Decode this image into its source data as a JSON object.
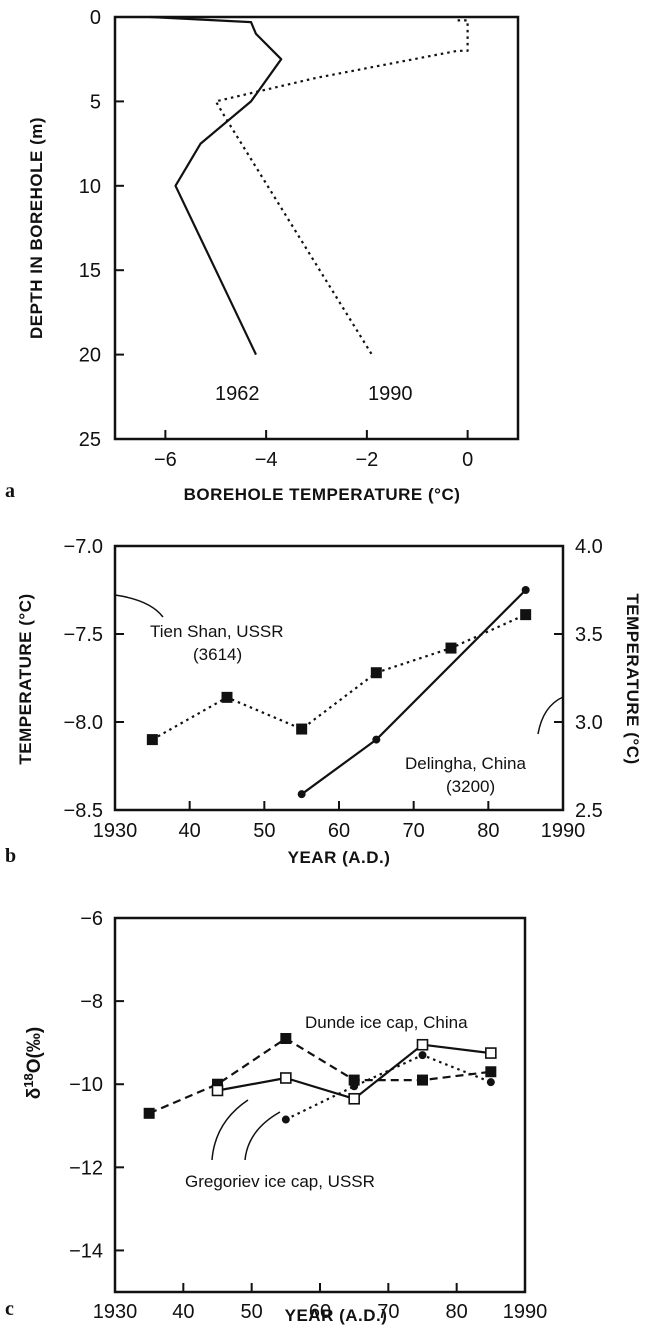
{
  "chart_data": [
    {
      "type": "line",
      "panel_label": "a",
      "xlabel": "BOREHOLE TEMPERATURE (°C)",
      "ylabel": "DEPTH IN BOREHOLE (m)",
      "xlim": [
        -7,
        1
      ],
      "ylim": [
        25,
        0
      ],
      "xticks": [
        -6,
        -4,
        -2,
        0
      ],
      "yticks": [
        0,
        5,
        10,
        15,
        20,
        25
      ],
      "series": [
        {
          "name": "1962",
          "style": "solid",
          "points": [
            [
              -6.3,
              0
            ],
            [
              -4.3,
              0.3
            ],
            [
              -4.2,
              1.0
            ],
            [
              -3.7,
              2.5
            ],
            [
              -4.3,
              5.0
            ],
            [
              -5.3,
              7.5
            ],
            [
              -5.8,
              10.0
            ],
            [
              -5.0,
              15.0
            ],
            [
              -4.2,
              20.0
            ]
          ]
        },
        {
          "name": "1990",
          "style": "dotted",
          "points": [
            [
              -0.2,
              0.2
            ],
            [
              0.0,
              0.2
            ],
            [
              0.0,
              2.0
            ],
            [
              -0.2,
              2.0
            ],
            [
              -3.0,
              3.6
            ],
            [
              -5.0,
              5.0
            ],
            [
              -4.8,
              6.0
            ],
            [
              -1.9,
              20.0
            ]
          ]
        }
      ],
      "grid": false
    },
    {
      "type": "line",
      "panel_label": "b",
      "xlabel": "YEAR (A.D.)",
      "ylabel_left": "TEMPERATURE (°C)",
      "ylabel_right": "TEMPERATURE (°C)",
      "xlim": [
        1930,
        1990
      ],
      "xticks": [
        1930,
        1940,
        1950,
        1960,
        1970,
        1980,
        1990
      ],
      "xtick_labels": [
        "1930",
        "40",
        "50",
        "60",
        "70",
        "80",
        "1990"
      ],
      "ylim_left": [
        -8.5,
        -7.0
      ],
      "yticks_left": [
        "-7.0",
        "-7.5",
        "-8.0",
        "-8.5"
      ],
      "ylim_right": [
        2.5,
        4.0
      ],
      "yticks_right": [
        "4.0",
        "3.5",
        "3.0",
        "2.5"
      ],
      "series": [
        {
          "name": "Tien Shan, USSR",
          "name_sub": "(3614)",
          "axis": "left",
          "style": "dotted",
          "marker": "square",
          "x": [
            1935,
            1945,
            1955,
            1965,
            1975,
            1985
          ],
          "values": [
            -8.1,
            -7.86,
            -8.04,
            -7.72,
            -7.58,
            -7.39
          ]
        },
        {
          "name": "Delingha, China",
          "name_sub": "(3200)",
          "axis": "right",
          "style": "solid",
          "marker": "dot",
          "x": [
            1955,
            1965,
            1985
          ],
          "values": [
            2.59,
            2.9,
            3.75
          ]
        }
      ],
      "grid": false
    },
    {
      "type": "line",
      "panel_label": "c",
      "xlabel": "YEAR (A.D.)",
      "ylabel_main": "δ",
      "ylabel_sup": "18",
      "ylabel_rest": "O(‰)",
      "xlim": [
        1930,
        1990
      ],
      "xticks": [
        1930,
        1940,
        1950,
        1960,
        1970,
        1980,
        1990
      ],
      "xtick_labels": [
        "1930",
        "40",
        "50",
        "60",
        "70",
        "80",
        "1990"
      ],
      "ylim": [
        -15,
        -6
      ],
      "yticks": [
        "-6",
        "-8",
        "-10",
        "-12",
        "-14"
      ],
      "annotations": [
        "Dunde ice cap, China",
        "Gregoriev ice cap, USSR"
      ],
      "series": [
        {
          "style": "dashed",
          "marker": "filled-square",
          "x": [
            1935,
            1945,
            1955,
            1965,
            1975,
            1985
          ],
          "values": [
            -10.7,
            -10.0,
            -8.9,
            -9.9,
            -9.9,
            -9.7
          ]
        },
        {
          "style": "solid",
          "marker": "open-square",
          "x": [
            1945,
            1955,
            1965,
            1975,
            1985
          ],
          "values": [
            -10.15,
            -9.85,
            -10.35,
            -9.05,
            -9.25
          ]
        },
        {
          "style": "dotted",
          "marker": "dot",
          "x": [
            1955,
            1965,
            1975,
            1985
          ],
          "values": [
            -10.85,
            -10.05,
            -9.3,
            -9.95
          ]
        }
      ],
      "grid": false
    }
  ]
}
